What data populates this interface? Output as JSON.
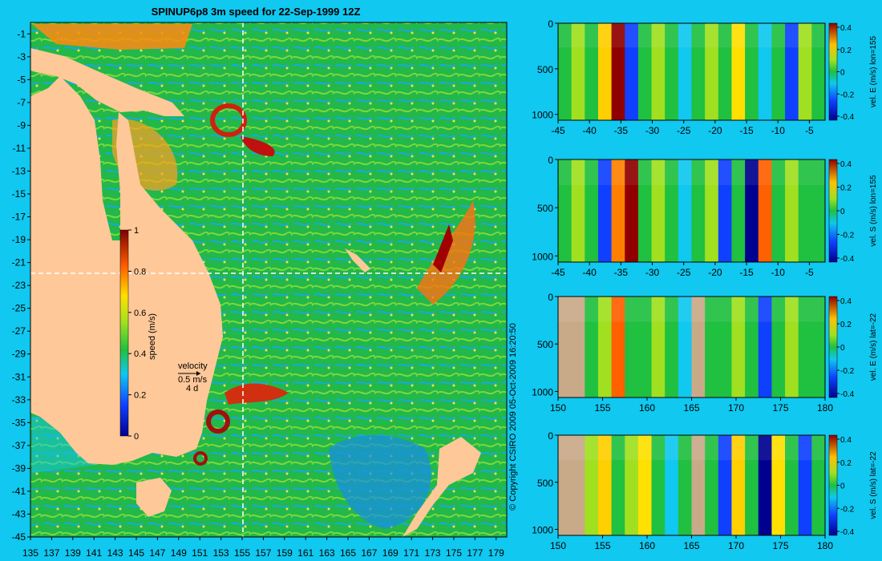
{
  "title": "SPINUP6p8 3m speed for 22-Sep-1999 12Z",
  "copyright": "© Copyright CSIRO 2009   05-Oct-2009 16:20:50",
  "colors": {
    "background": "#10c8f0",
    "land": "#ffc898",
    "section_land": "#c8aa88",
    "guide": "#ffffff"
  },
  "chart_data": [
    {
      "type": "heatmap",
      "title": "SPINUP6p8 3m speed for 22-Sep-1999 12Z",
      "x_ticks": [
        "135",
        "137",
        "139",
        "141",
        "143",
        "145",
        "147",
        "149",
        "151",
        "153",
        "155",
        "157",
        "159",
        "161",
        "163",
        "165",
        "167",
        "169",
        "171",
        "173",
        "175",
        "177",
        "179"
      ],
      "y_ticks": [
        "-1",
        "-3",
        "-5",
        "-7",
        "-9",
        "-11",
        "-13",
        "-15",
        "-17",
        "-19",
        "-21",
        "-23",
        "-25",
        "-27",
        "-29",
        "-31",
        "-33",
        "-35",
        "-37",
        "-39",
        "-41",
        "-43",
        "-45"
      ],
      "xlim": [
        135,
        180
      ],
      "ylim": [
        -45,
        0
      ],
      "guide_lon": 155,
      "guide_lat": -22,
      "colorbar": {
        "label": "speed (m/s)",
        "ticks": [
          "1",
          "0.8",
          "0.6",
          "0.4",
          "0.2",
          "0"
        ],
        "range": [
          0,
          1
        ]
      },
      "legend_velocity": {
        "title": "velocity",
        "scale": "0.5 m/s",
        "duration": "4 d"
      }
    },
    {
      "type": "heatmap",
      "x_ticks": [
        "-45",
        "-40",
        "-35",
        "-30",
        "-25",
        "-20",
        "-15",
        "-10",
        "-5"
      ],
      "y_ticks": [
        "0",
        "500",
        "1000"
      ],
      "colorbar": {
        "label": "vel. E (m/s) lon=155",
        "ticks": [
          "0.4",
          "0.2",
          "0",
          "-0.2",
          "-0.4"
        ],
        "range": [
          -0.4,
          0.4
        ]
      }
    },
    {
      "type": "heatmap",
      "x_ticks": [
        "-45",
        "-40",
        "-35",
        "-30",
        "-25",
        "-20",
        "-15",
        "-10",
        "-5"
      ],
      "y_ticks": [
        "0",
        "500",
        "1000"
      ],
      "colorbar": {
        "label": "vel. S (m/s) lon=155",
        "ticks": [
          "0.4",
          "0.2",
          "0",
          "-0.2",
          "-0.4"
        ],
        "range": [
          -0.4,
          0.4
        ]
      }
    },
    {
      "type": "heatmap",
      "x_ticks": [
        "150",
        "155",
        "160",
        "165",
        "170",
        "175",
        "180"
      ],
      "y_ticks": [
        "0",
        "500",
        "1000"
      ],
      "colorbar": {
        "label": "vel. E (m/s) lat=-22",
        "ticks": [
          "0.4",
          "0.2",
          "0",
          "-0.2",
          "-0.4"
        ],
        "range": [
          -0.4,
          0.4
        ]
      }
    },
    {
      "type": "heatmap",
      "x_ticks": [
        "150",
        "155",
        "160",
        "165",
        "170",
        "175",
        "180"
      ],
      "y_ticks": [
        "0",
        "500",
        "1000"
      ],
      "colorbar": {
        "label": "vel. S (m/s) lat=-22",
        "ticks": [
          "0.4",
          "0.2",
          "0",
          "-0.2",
          "-0.4"
        ],
        "range": [
          -0.4,
          0.4
        ]
      }
    }
  ]
}
